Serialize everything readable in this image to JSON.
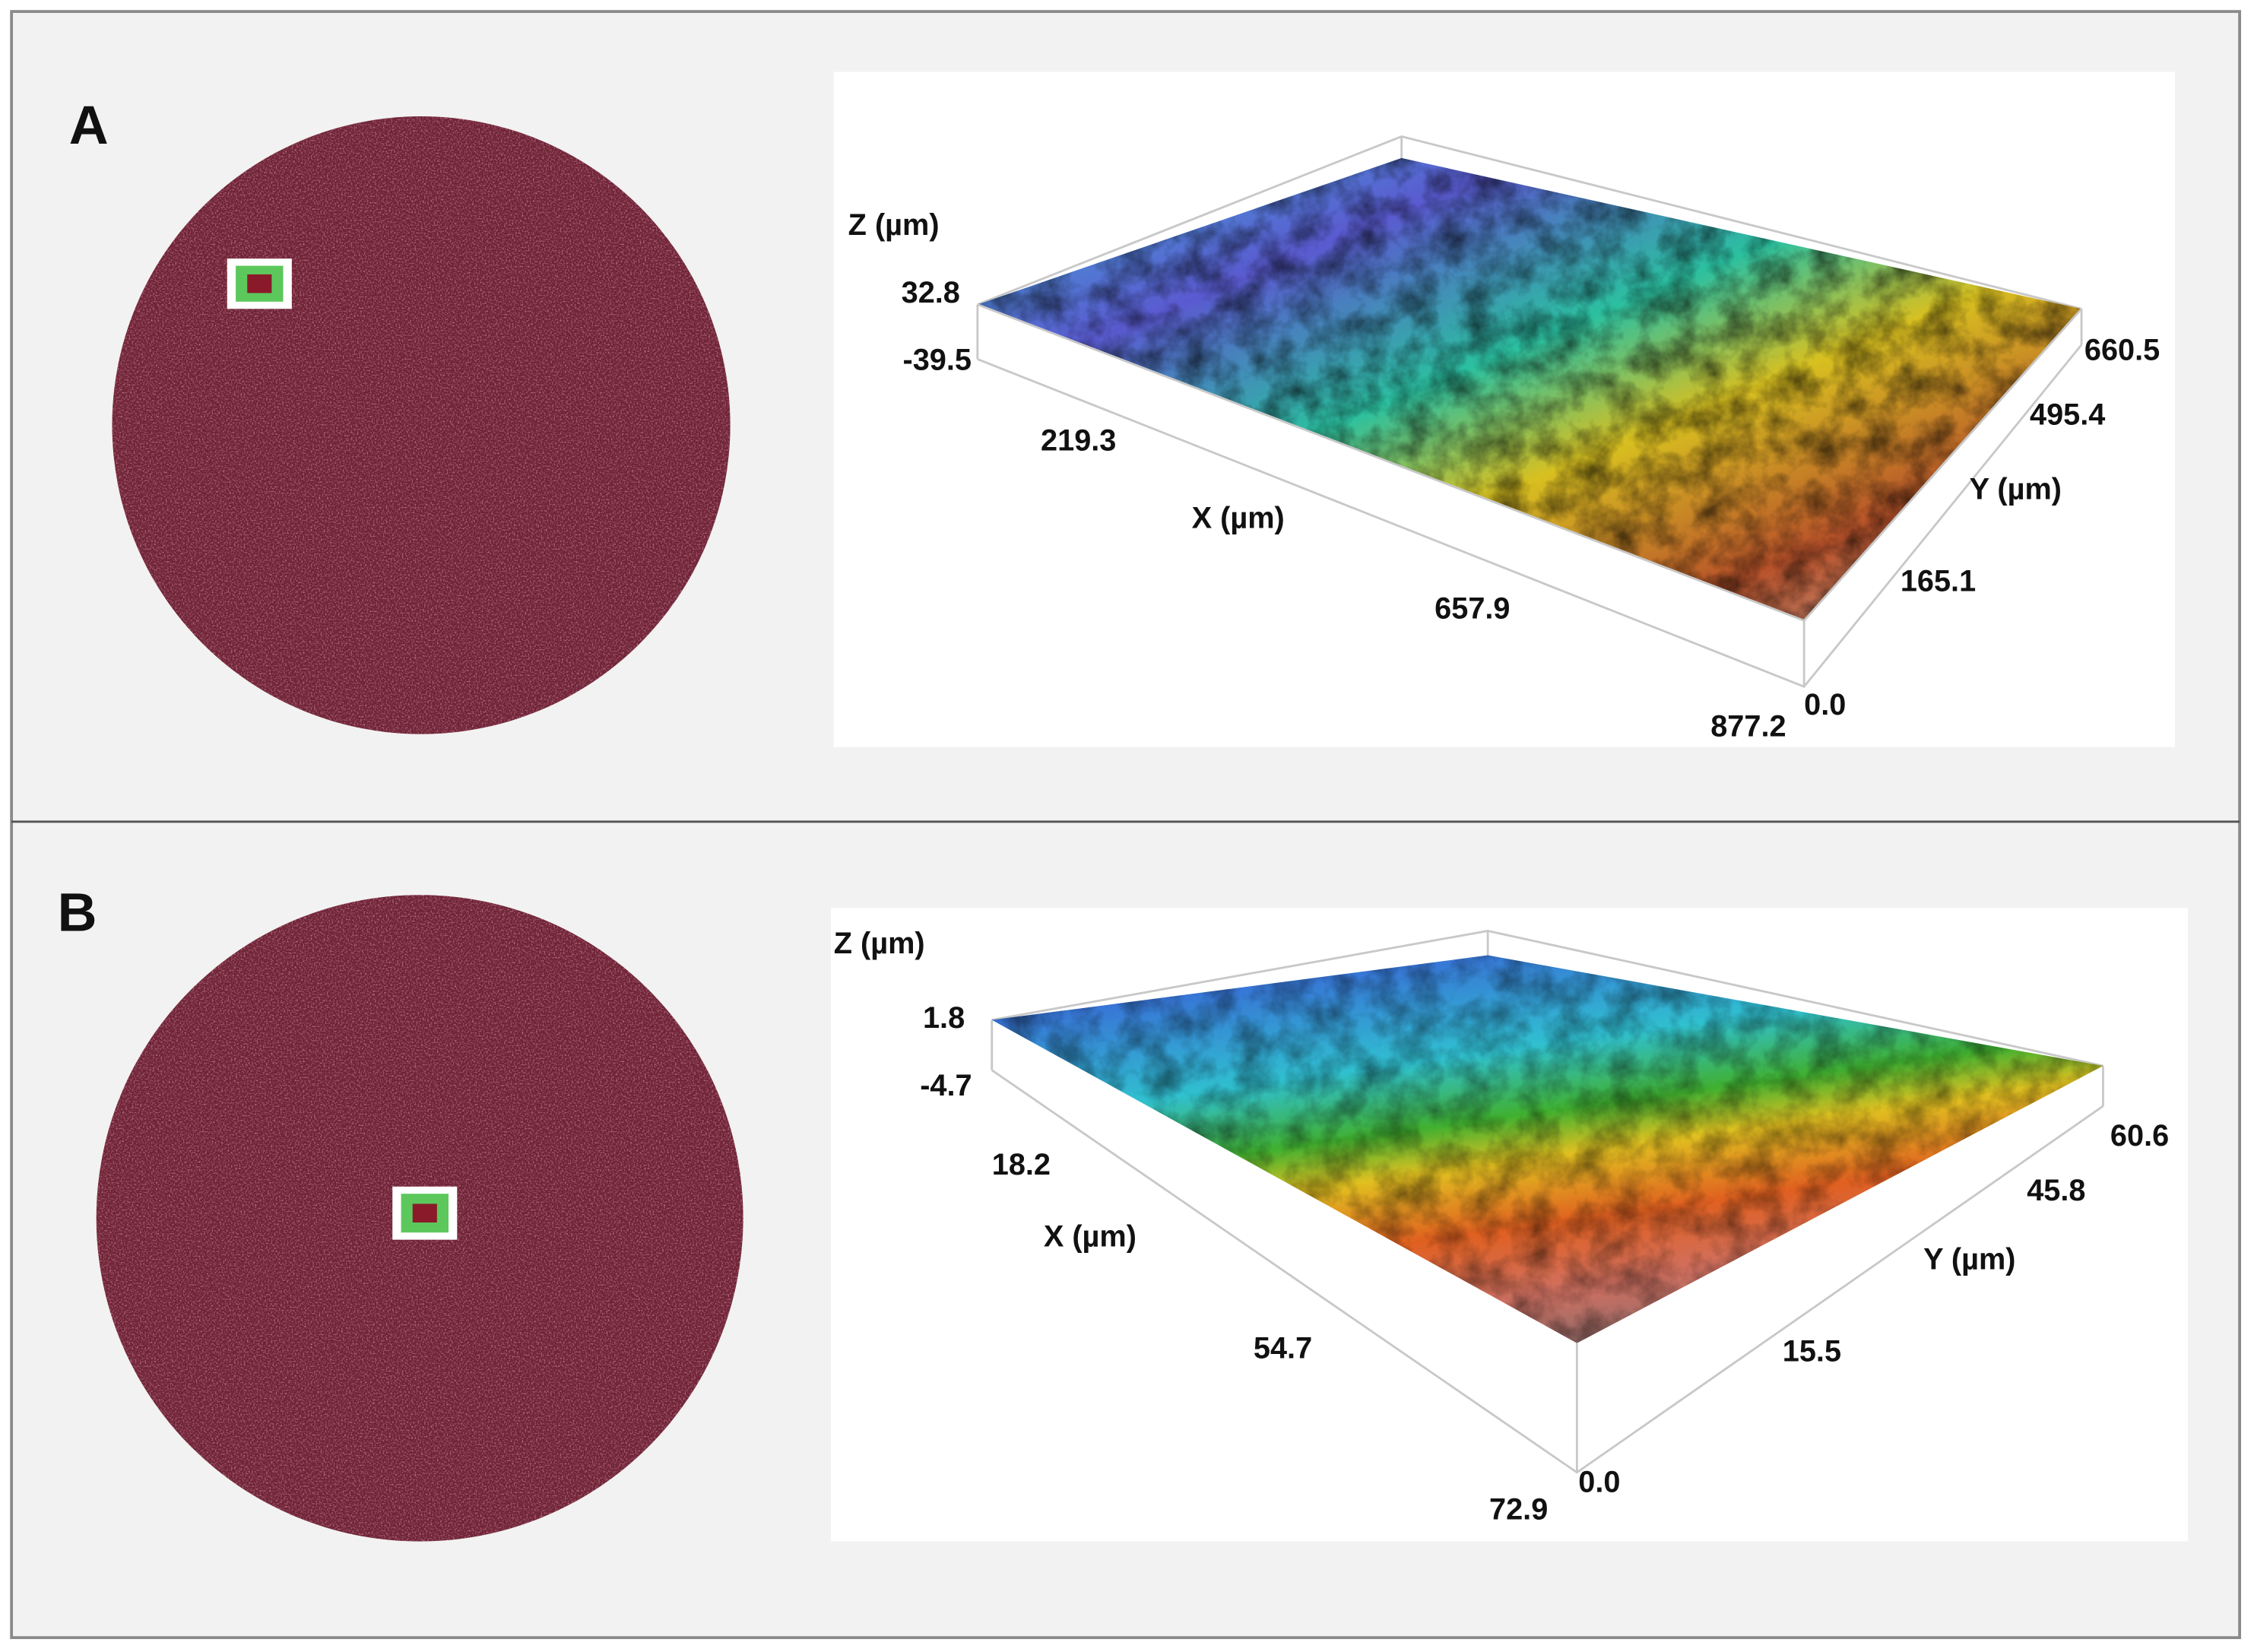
{
  "panels": [
    {
      "label": "A",
      "z_axis_label": "Z (µm)",
      "x_axis_label": "X (µm)",
      "y_axis_label": "Y (µm)",
      "z_ticks": [
        "32.8",
        "-39.5"
      ],
      "x_ticks": [
        "219.3",
        "657.9",
        "877.2"
      ],
      "y_ticks": [
        "0.0",
        "165.1",
        "495.4",
        "660.5"
      ]
    },
    {
      "label": "B",
      "z_axis_label": "Z (µm)",
      "x_axis_label": "X (µm)",
      "y_axis_label": "Y (µm)",
      "z_ticks": [
        "1.8",
        "-4.7"
      ],
      "x_ticks": [
        "18.2",
        "54.7",
        "72.9"
      ],
      "y_ticks": [
        "0.0",
        "15.5",
        "45.8",
        "60.6"
      ]
    }
  ]
}
